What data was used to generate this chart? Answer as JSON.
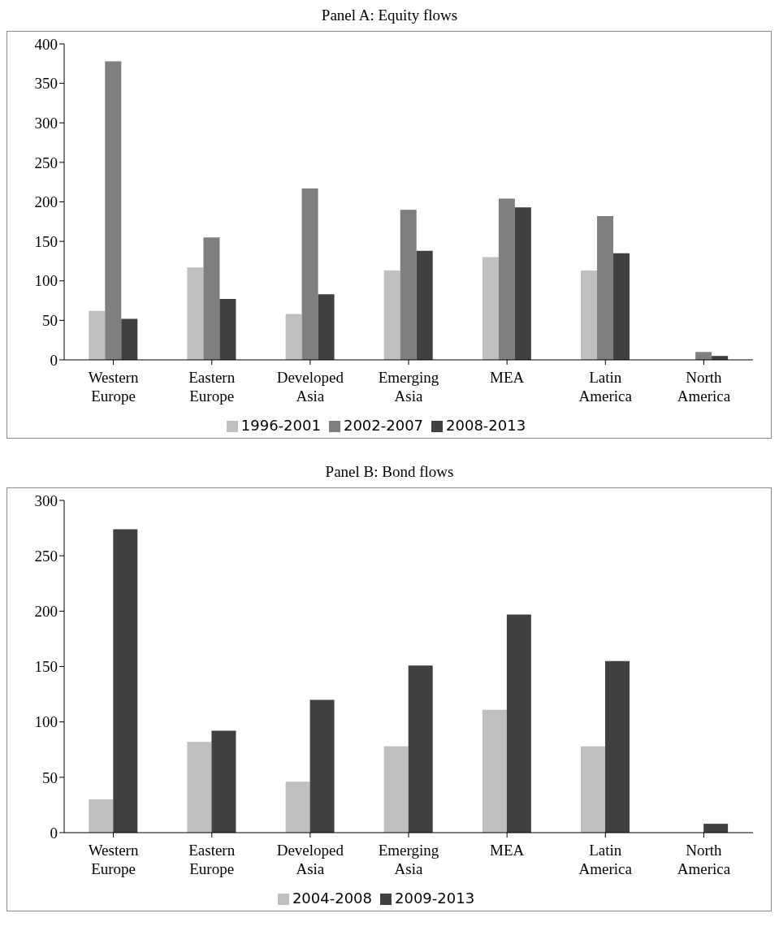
{
  "chart_data": [
    {
      "type": "bar",
      "title": "Panel A: Equity flows",
      "categories": [
        "Western Europe",
        "Eastern Europe",
        "Developed Asia",
        "Emerging Asia",
        "MEA",
        "Latin America",
        "North America"
      ],
      "series": [
        {
          "name": "1996-2001",
          "color": "#bfbfbf",
          "values": [
            62,
            117,
            58,
            113,
            130,
            113,
            0
          ]
        },
        {
          "name": "2002-2007",
          "color": "#7f7f7f",
          "values": [
            378,
            155,
            217,
            190,
            204,
            182,
            10
          ]
        },
        {
          "name": "2008-2013",
          "color": "#404040",
          "values": [
            52,
            77,
            83,
            138,
            193,
            135,
            5
          ]
        }
      ],
      "ylim": [
        0,
        400
      ],
      "yticks": [
        0,
        50,
        100,
        150,
        200,
        250,
        300,
        350,
        400
      ],
      "grid": false,
      "legend": "bottom"
    },
    {
      "type": "bar",
      "title": "Panel B: Bond flows",
      "categories": [
        "Western Europe",
        "Eastern Europe",
        "Developed Asia",
        "Emerging Asia",
        "MEA",
        "Latin America",
        "North America"
      ],
      "series": [
        {
          "name": "2004-2008",
          "color": "#bfbfbf",
          "values": [
            30,
            82,
            46,
            78,
            111,
            78,
            0
          ]
        },
        {
          "name": "2009-2013",
          "color": "#404040",
          "values": [
            274,
            92,
            120,
            151,
            197,
            155,
            8
          ]
        }
      ],
      "ylim": [
        0,
        300
      ],
      "yticks": [
        0,
        50,
        100,
        150,
        200,
        250,
        300
      ],
      "grid": false,
      "legend": "bottom"
    }
  ]
}
